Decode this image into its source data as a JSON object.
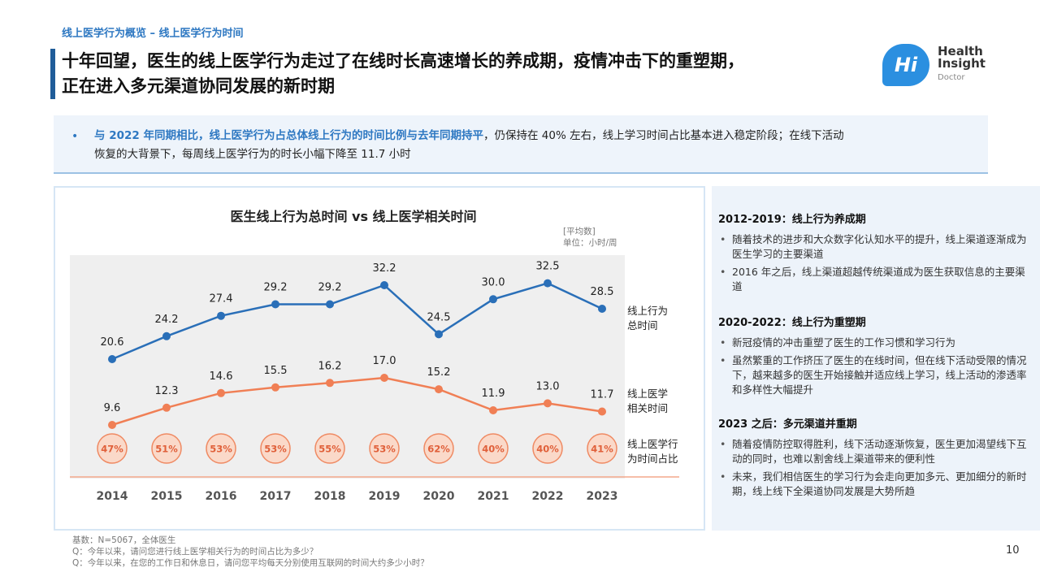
{
  "header": {
    "breadcrumb": "线上医学行为概览 – 线上医学行为时间",
    "title_line1": "十年回望，医生的线上医学行为走过了在线时长高速增长的养成期，疫情冲击下的重塑期，",
    "title_line2": "正在进入多元渠道协同发展的新时期"
  },
  "logo": {
    "mark": "Hi",
    "line1": "Health",
    "line2": "Insight",
    "line3": "Doctor",
    "color": "#2b8fe0"
  },
  "summary": {
    "bullet": "•",
    "highlight": "与 2022 年同期相比，线上医学行为占总体线上行为的时间比例与去年同期持平",
    "rest_line1": "，仍保持在 40% 左右，线上学习时间占比基本进入稳定阶段；在线下活动",
    "line2": "恢复的大背景下，每周线上医学行为的时长小幅下降至 11.7 小时"
  },
  "chart_data": {
    "type": "line",
    "title": "医生线上行为总时间 vs 线上医学相关时间",
    "unit_note_line1": "[平均数]",
    "unit_note_line2": "单位：小时/周",
    "categories": [
      "2014",
      "2015",
      "2016",
      "2017",
      "2018",
      "2019",
      "2020",
      "2021",
      "2022",
      "2023"
    ],
    "series": [
      {
        "name_line1": "线上行为",
        "name_line2": "总时间",
        "color": "#2a6fb8",
        "values": [
          20.6,
          24.2,
          27.4,
          29.2,
          29.2,
          32.2,
          24.5,
          30.0,
          32.5,
          28.5
        ],
        "labels": [
          "20.6",
          "24.2",
          "27.4",
          "29.2",
          "29.2",
          "32.2",
          "24.5",
          "30.0",
          "32.5",
          "28.5"
        ]
      },
      {
        "name_line1": "线上医学",
        "name_line2": "相关时间",
        "color": "#f07f55",
        "values": [
          9.6,
          12.3,
          14.6,
          15.5,
          16.2,
          17.0,
          15.2,
          11.9,
          13.0,
          11.7
        ],
        "labels": [
          "9.6",
          "12.3",
          "14.6",
          "15.5",
          "16.2",
          "17.0",
          "15.2",
          "11.9",
          "13.0",
          "11.7"
        ]
      }
    ],
    "ratio": {
      "name_line1": "线上医学行",
      "name_line2": "为时间占比",
      "values": [
        "47%",
        "51%",
        "53%",
        "53%",
        "55%",
        "53%",
        "62%",
        "40%",
        "40%",
        "41%"
      ],
      "fill": "#fad9c9",
      "stroke": "#ef8a63",
      "text_color": "#e0603a"
    },
    "periods": [
      {
        "from": "2014",
        "to": "2019"
      },
      {
        "from": "2020",
        "to": "2022"
      },
      {
        "from": "2023",
        "to": "2023"
      }
    ],
    "period_fill": "#efefef",
    "baseline_color": "#f3a98c"
  },
  "sidebar": {
    "sections": [
      {
        "heading": "2012-2019：线上行为养成期",
        "items": [
          "随着技术的进步和大众数字化认知水平的提升，线上渠道逐渐成为医生学习的主要渠道",
          "2016 年之后，线上渠道超越传统渠道成为医生获取信息的主要渠道"
        ]
      },
      {
        "heading": "2020-2022：线上行为重塑期",
        "items": [
          "新冠疫情的冲击重塑了医生的工作习惯和学习行为",
          "虽然繁重的工作挤压了医生的在线时间，但在线下活动受限的情况下，越来越多的医生开始接触并适应线上学习，线上活动的渗透率和多样性大幅提升"
        ]
      },
      {
        "heading": "2023 之后：多元渠道并重期",
        "items": [
          "随着疫情防控取得胜利，线下活动逐渐恢复，医生更加渴望线下互动的同时，也难以割舍线上渠道带来的便利性",
          "未来，我们相信医生的学习行为会走向更加多元、更加细分的新时期，线上线下全渠道协同发展是大势所趋"
        ]
      }
    ]
  },
  "notes": {
    "base": "基数：N=5067，全体医生",
    "q1": "Q：今年以来，请问您进行线上医学相关行为的时间占比为多少？",
    "q2": "Q：今年以来，在您的工作日和休息日，请问您平均每天分别使用互联网的时间大约多少小时？"
  },
  "page_number": "10"
}
